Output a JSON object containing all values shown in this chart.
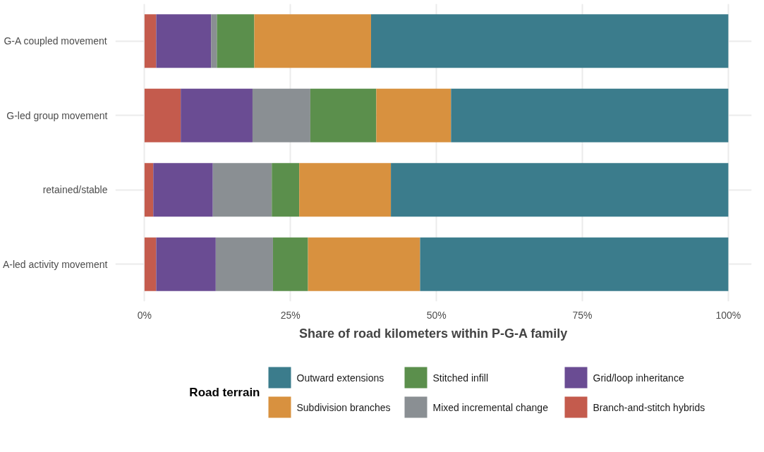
{
  "chart_data": {
    "type": "bar",
    "orientation": "horizontal",
    "stacked": true,
    "xlabel": "Share of road kilometers within P-G-A family",
    "legend_title": "Road terrain",
    "categories": [
      "G-A coupled movement",
      "G-led group movement",
      "retained/stable",
      "A-led activity movement"
    ],
    "series": [
      {
        "name": "Branch-and-stitch hybrids",
        "color": "#c45b4d",
        "values": [
          2.0,
          6.2,
          1.5,
          2.0
        ]
      },
      {
        "name": "Grid/loop inheritance",
        "color": "#6a4c93",
        "values": [
          9.4,
          12.3,
          10.2,
          10.2
        ]
      },
      {
        "name": "Mixed incremental change",
        "color": "#8a8f93",
        "values": [
          1.0,
          9.9,
          10.1,
          9.8
        ]
      },
      {
        "name": "Stitched infill",
        "color": "#5b8f4c",
        "values": [
          6.4,
          11.3,
          4.7,
          6.0
        ]
      },
      {
        "name": "Subdivision branches",
        "color": "#d8913f",
        "values": [
          20.0,
          12.8,
          15.7,
          19.2
        ]
      },
      {
        "name": "Outward extensions",
        "color": "#3b7c8c",
        "values": [
          61.2,
          47.5,
          57.8,
          52.8
        ]
      }
    ],
    "xlim": [
      -5,
      104
    ],
    "xticks": [
      {
        "value": 0,
        "label": "0%"
      },
      {
        "value": 25,
        "label": "25%"
      },
      {
        "value": 50,
        "label": "50%"
      },
      {
        "value": 75,
        "label": "75%"
      },
      {
        "value": 100,
        "label": "100%"
      }
    ],
    "grid": true,
    "legend": "bottom"
  }
}
